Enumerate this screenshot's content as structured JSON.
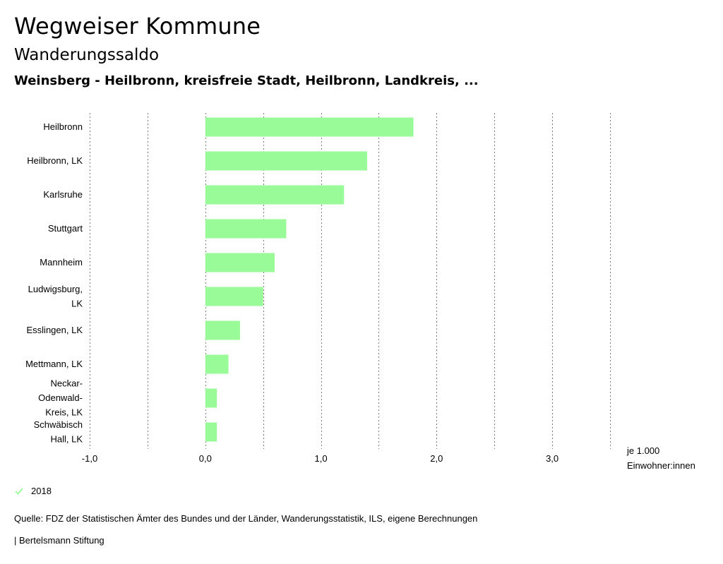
{
  "header": {
    "title": "Wegweiser Kommune",
    "subtitle": "Wanderungssaldo",
    "location": "Weinsberg - Heilbronn, kreisfreie Stadt, Heilbronn, Landkreis, ..."
  },
  "chart_data": {
    "type": "bar",
    "orientation": "horizontal",
    "categories": [
      [
        "Heilbronn"
      ],
      [
        "Heilbronn, LK"
      ],
      [
        "Karlsruhe"
      ],
      [
        "Stuttgart"
      ],
      [
        "Mannheim"
      ],
      [
        "Ludwigsburg,",
        "LK"
      ],
      [
        "Esslingen, LK"
      ],
      [
        "Mettmann, LK"
      ],
      [
        "Neckar-",
        "Odenwald-",
        "Kreis, LK"
      ],
      [
        "Schwäbisch",
        "Hall, LK"
      ]
    ],
    "series": [
      {
        "name": "2018",
        "color": "#98fb98",
        "values": [
          1.8,
          1.4,
          1.2,
          0.7,
          0.6,
          0.5,
          0.3,
          0.2,
          0.1,
          0.1
        ]
      }
    ],
    "xlim": [
      -1.0,
      3.5
    ],
    "xticks": [
      -1.0,
      0.0,
      1.0,
      2.0,
      3.0
    ],
    "xtick_labels": [
      "-1,0",
      "0,0",
      "1,0",
      "2,0",
      "3,0"
    ],
    "gridlines": [
      -1.0,
      -0.5,
      0.0,
      0.5,
      1.0,
      1.5,
      2.0,
      2.5,
      3.0,
      3.5
    ],
    "xlabel": [
      "je 1.000",
      "Einwohner:innen"
    ],
    "grid": true
  },
  "legend": {
    "label": "2018",
    "color": "#98fb98"
  },
  "footer": {
    "source": "Quelle: FDZ der Statistischen Ämter des Bundes und der Länder, Wanderungsstatistik, ILS, eigene Berechnungen",
    "credit": "| Bertelsmann Stiftung"
  }
}
